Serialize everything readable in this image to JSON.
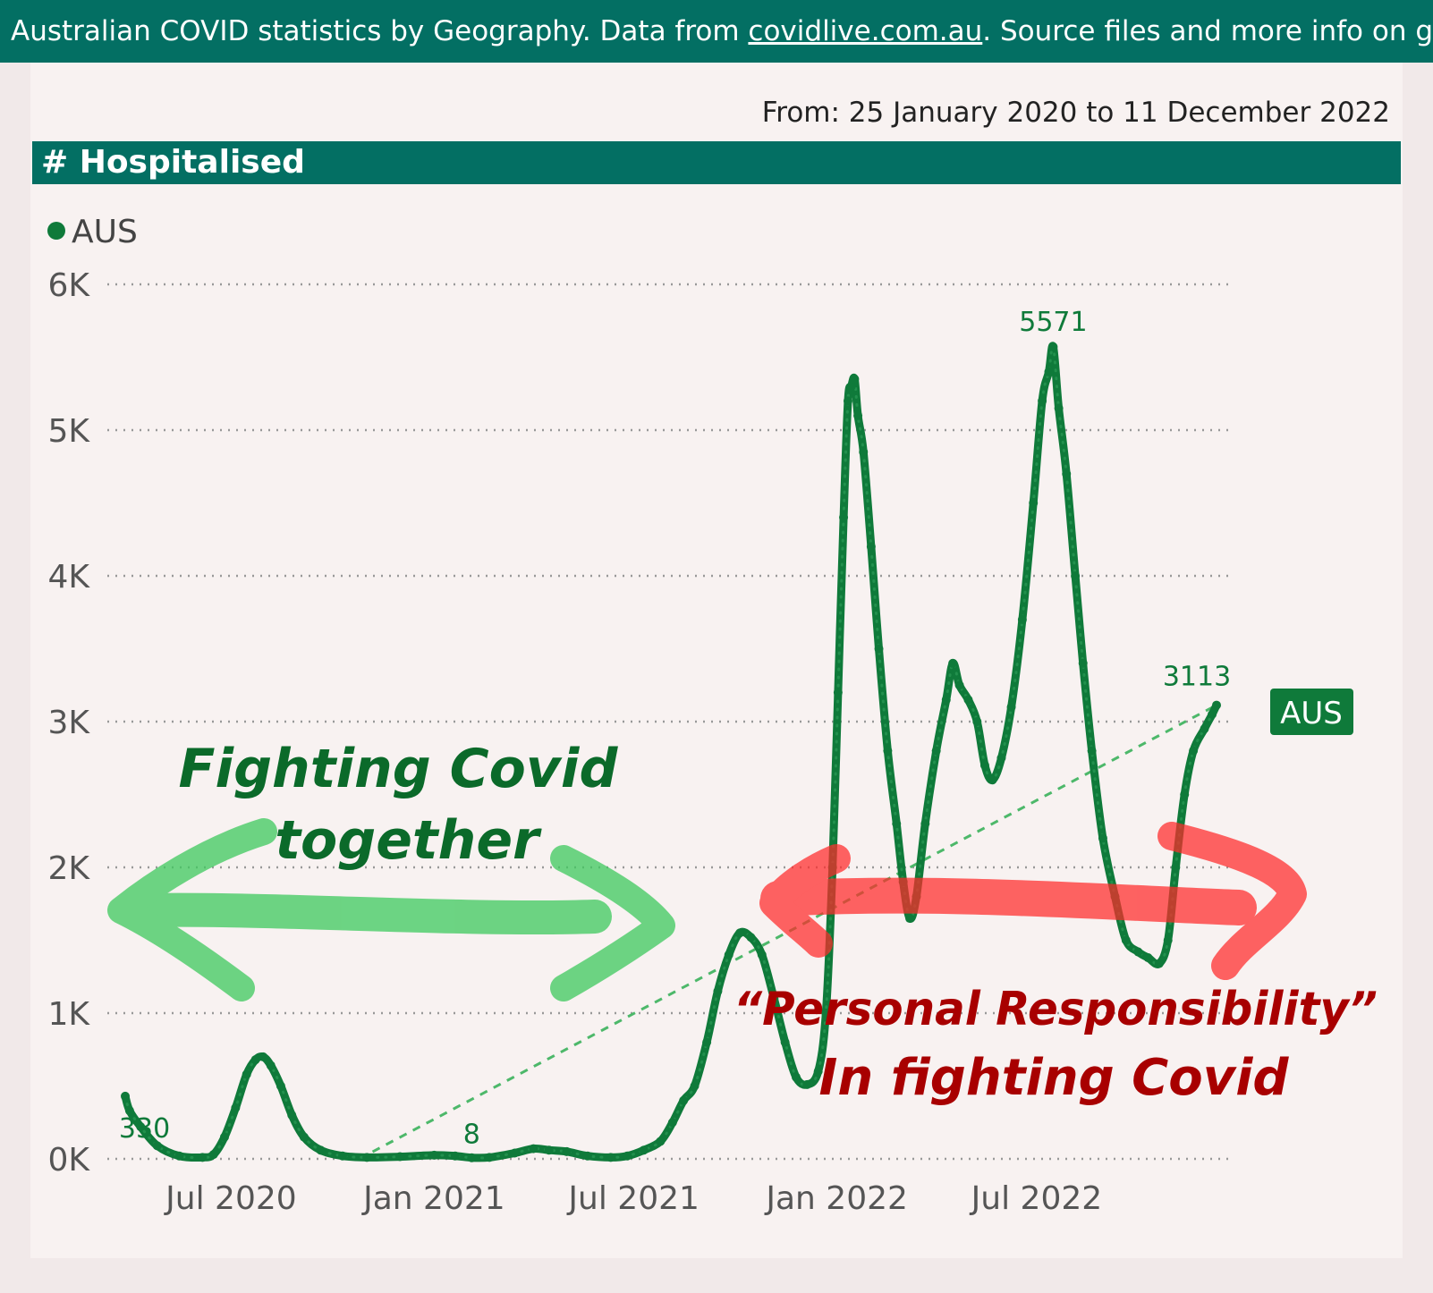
{
  "banner": {
    "text_before": "Australian COVID statistics by Geography. Data from ",
    "link": "covidlive.com.au",
    "text_after": ". Source files and more info on gi"
  },
  "date_range": "From: 25 January 2020 to 11 December 2022",
  "chart_header": "# Hospitalised",
  "colors": {
    "header_bg": "#036f63",
    "series": "#0f7a3a",
    "trend": "#4db86a",
    "annotation_green": "#3ec95e",
    "annotation_red": "#ff2a2a",
    "annotation_red_text": "#a80000",
    "annotation_green_text": "#0b6a2a"
  },
  "annotations": {
    "green_text_line1": "Fighting Covid",
    "green_text_line2": "together",
    "red_text_line1": "“Personal Responsibility”",
    "red_text_line2": "In fighting Covid"
  },
  "chart_data": {
    "type": "line",
    "title": "# Hospitalised",
    "legend": [
      {
        "name": "AUS",
        "color": "#0f7a3a"
      }
    ],
    "legend_position": "top-left",
    "ylim": [
      0,
      6000
    ],
    "y_ticks": [
      0,
      1000,
      2000,
      3000,
      4000,
      5000,
      6000
    ],
    "y_tick_labels": [
      "0K",
      "1K",
      "2K",
      "3K",
      "4K",
      "5K",
      "6K"
    ],
    "x_ticks": [
      "2020-07-01",
      "2021-01-01",
      "2021-07-01",
      "2022-01-01",
      "2022-07-01"
    ],
    "x_tick_labels": [
      "Jul 2020",
      "Jan 2021",
      "Jul 2021",
      "Jan 2022",
      "Jul 2022"
    ],
    "xlim": [
      "2020-03-27",
      "2022-12-11"
    ],
    "series": [
      {
        "name": "AUS",
        "points": [
          [
            "2020-03-27",
            430
          ],
          [
            "2020-03-31",
            330
          ],
          [
            "2020-04-10",
            220
          ],
          [
            "2020-04-25",
            90
          ],
          [
            "2020-05-15",
            20
          ],
          [
            "2020-06-05",
            10
          ],
          [
            "2020-06-15",
            30
          ],
          [
            "2020-06-25",
            150
          ],
          [
            "2020-07-05",
            350
          ],
          [
            "2020-07-15",
            580
          ],
          [
            "2020-07-23",
            680
          ],
          [
            "2020-07-30",
            700
          ],
          [
            "2020-08-06",
            640
          ],
          [
            "2020-08-15",
            500
          ],
          [
            "2020-08-25",
            300
          ],
          [
            "2020-09-05",
            150
          ],
          [
            "2020-09-20",
            60
          ],
          [
            "2020-10-10",
            20
          ],
          [
            "2020-11-01",
            10
          ],
          [
            "2020-12-01",
            15
          ],
          [
            "2021-01-01",
            25
          ],
          [
            "2021-01-20",
            20
          ],
          [
            "2021-02-04",
            8
          ],
          [
            "2021-02-20",
            10
          ],
          [
            "2021-03-15",
            40
          ],
          [
            "2021-04-01",
            70
          ],
          [
            "2021-04-15",
            60
          ],
          [
            "2021-05-01",
            50
          ],
          [
            "2021-05-20",
            20
          ],
          [
            "2021-06-10",
            10
          ],
          [
            "2021-06-25",
            20
          ],
          [
            "2021-07-10",
            60
          ],
          [
            "2021-07-25",
            120
          ],
          [
            "2021-08-05",
            250
          ],
          [
            "2021-08-15",
            400
          ],
          [
            "2021-08-25",
            500
          ],
          [
            "2021-09-05",
            800
          ],
          [
            "2021-09-15",
            1150
          ],
          [
            "2021-09-25",
            1400
          ],
          [
            "2021-10-05",
            1550
          ],
          [
            "2021-10-15",
            1520
          ],
          [
            "2021-10-25",
            1400
          ],
          [
            "2021-11-05",
            1100
          ],
          [
            "2021-11-15",
            800
          ],
          [
            "2021-11-25",
            560
          ],
          [
            "2021-12-05",
            510
          ],
          [
            "2021-12-15",
            600
          ],
          [
            "2021-12-22",
            1000
          ],
          [
            "2021-12-28",
            2000
          ],
          [
            "2022-01-02",
            3200
          ],
          [
            "2022-01-07",
            4400
          ],
          [
            "2022-01-11",
            5200
          ],
          [
            "2022-01-14",
            5300
          ],
          [
            "2022-01-17",
            5350
          ],
          [
            "2022-01-20",
            5100
          ],
          [
            "2022-01-25",
            4850
          ],
          [
            "2022-02-01",
            4200
          ],
          [
            "2022-02-08",
            3500
          ],
          [
            "2022-02-16",
            2800
          ],
          [
            "2022-02-24",
            2300
          ],
          [
            "2022-03-02",
            1900
          ],
          [
            "2022-03-08",
            1650
          ],
          [
            "2022-03-14",
            1800
          ],
          [
            "2022-03-22",
            2300
          ],
          [
            "2022-04-01",
            2800
          ],
          [
            "2022-04-10",
            3150
          ],
          [
            "2022-04-16",
            3400
          ],
          [
            "2022-04-22",
            3250
          ],
          [
            "2022-04-30",
            3150
          ],
          [
            "2022-05-08",
            3000
          ],
          [
            "2022-05-15",
            2700
          ],
          [
            "2022-05-22",
            2600
          ],
          [
            "2022-05-30",
            2750
          ],
          [
            "2022-06-08",
            3100
          ],
          [
            "2022-06-18",
            3700
          ],
          [
            "2022-06-28",
            4500
          ],
          [
            "2022-07-06",
            5200
          ],
          [
            "2022-07-12",
            5400
          ],
          [
            "2022-07-16",
            5571
          ],
          [
            "2022-07-21",
            5150
          ],
          [
            "2022-07-28",
            4700
          ],
          [
            "2022-08-05",
            4000
          ],
          [
            "2022-08-12",
            3400
          ],
          [
            "2022-08-20",
            2800
          ],
          [
            "2022-08-30",
            2200
          ],
          [
            "2022-09-10",
            1800
          ],
          [
            "2022-09-20",
            1500
          ],
          [
            "2022-10-01",
            1420
          ],
          [
            "2022-10-10",
            1380
          ],
          [
            "2022-10-20",
            1340
          ],
          [
            "2022-10-28",
            1500
          ],
          [
            "2022-11-04",
            2000
          ],
          [
            "2022-11-12",
            2500
          ],
          [
            "2022-11-20",
            2800
          ],
          [
            "2022-11-30",
            2950
          ],
          [
            "2022-12-07",
            3050
          ],
          [
            "2022-12-11",
            3113
          ]
        ]
      }
    ],
    "trend_line": {
      "from": [
        "2020-10-25",
        0
      ],
      "to": [
        "2022-12-11",
        3113
      ],
      "style": "dashed"
    },
    "data_labels": [
      {
        "date": "2020-03-31",
        "value": 330,
        "text": "330"
      },
      {
        "date": "2021-02-04",
        "value": 8,
        "text": "8"
      },
      {
        "date": "2022-07-16",
        "value": 5571,
        "text": "5571"
      },
      {
        "date": "2022-12-11",
        "value": 3113,
        "text": "3113"
      }
    ],
    "end_label": "AUS"
  }
}
